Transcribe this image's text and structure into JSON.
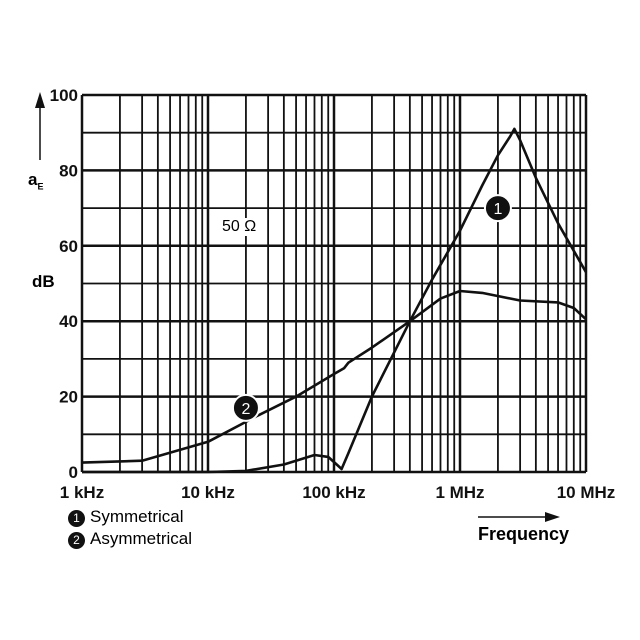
{
  "chart_data": {
    "type": "line",
    "x_scale": "log",
    "xlim": [
      1000,
      10000000
    ],
    "ylim": [
      0,
      100
    ],
    "grid": true,
    "ylabel_symbol": "a",
    "ylabel_subscript": "E",
    "yunit": "dB",
    "xlabel": "Frequency",
    "annotation": "50 Ω",
    "x_ticks": [
      {
        "v": 1000,
        "label": "1 kHz"
      },
      {
        "v": 10000,
        "label": "10 kHz"
      },
      {
        "v": 100000,
        "label": "100 kHz"
      },
      {
        "v": 1000000,
        "label": "1 MHz"
      },
      {
        "v": 10000000,
        "label": "10 MHz"
      }
    ],
    "y_ticks": [
      {
        "v": 0,
        "label": "0"
      },
      {
        "v": 20,
        "label": "20"
      },
      {
        "v": 40,
        "label": "40"
      },
      {
        "v": 60,
        "label": "60"
      },
      {
        "v": 80,
        "label": "80"
      },
      {
        "v": 100,
        "label": "100"
      }
    ],
    "series": [
      {
        "name": "Symmetrical",
        "marker": "1",
        "x": [
          1000,
          10000,
          20000,
          40000,
          70000,
          90000,
          105000,
          115000,
          130000,
          200000,
          400000,
          600000,
          1000000,
          1500000,
          2000000,
          2500000,
          2700000,
          3000000,
          4000000,
          6000000,
          10000000
        ],
        "y": [
          0,
          0,
          0.3,
          2,
          4.5,
          4,
          2,
          0.8,
          5,
          20,
          40,
          51,
          64,
          76,
          84,
          89,
          91,
          88,
          78,
          66,
          53
        ]
      },
      {
        "name": "Asymmetrical",
        "x": [
          1000,
          3000,
          10000,
          25000,
          50000,
          100000,
          120000,
          130000,
          200000,
          400000,
          700000,
          1000000,
          1500000,
          3000000,
          6000000,
          8000000,
          10000000
        ],
        "y": [
          2.5,
          3,
          8,
          15,
          20,
          26,
          27.5,
          29,
          33,
          40,
          46,
          48,
          47.5,
          45.5,
          45,
          43.5,
          40.5
        ]
      }
    ],
    "legend": [
      {
        "marker": "1",
        "label": "Symmetrical"
      },
      {
        "marker": "2",
        "label": "Asymmetrical"
      }
    ],
    "curve_markers": [
      {
        "marker": "1",
        "x": 2000000,
        "y": 70
      },
      {
        "marker": "2",
        "x": 20000,
        "y": 17
      }
    ]
  }
}
